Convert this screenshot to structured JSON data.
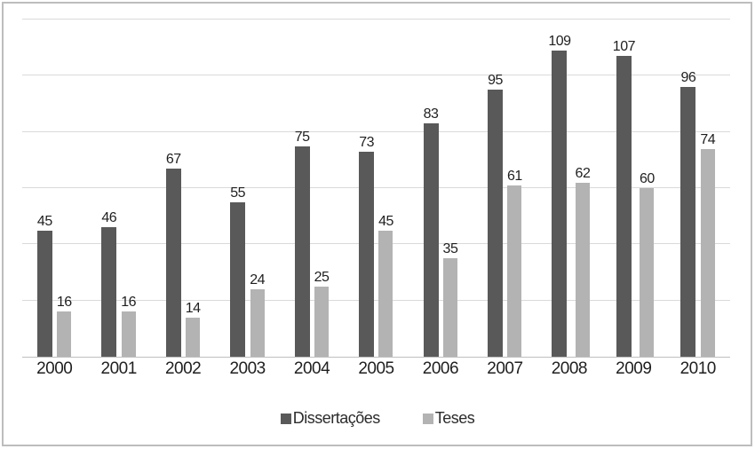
{
  "chart_data": {
    "type": "bar",
    "title": "",
    "xlabel": "",
    "ylabel": "",
    "categories": [
      "2000",
      "2001",
      "2002",
      "2003",
      "2004",
      "2005",
      "2006",
      "2007",
      "2008",
      "2009",
      "2010"
    ],
    "series": [
      {
        "name": "Dissertações",
        "color": "#595959",
        "values": [
          45,
          46,
          67,
          55,
          75,
          73,
          83,
          95,
          109,
          107,
          96
        ]
      },
      {
        "name": "Teses",
        "color": "#b3b3b3",
        "values": [
          16,
          16,
          14,
          24,
          25,
          45,
          35,
          61,
          62,
          60,
          74
        ]
      }
    ],
    "ylim": [
      0,
      120
    ],
    "gridline_step": 20,
    "grid": true,
    "y_axis_labels_visible": false,
    "data_labels_visible": true,
    "legend_position": "bottom"
  },
  "colors": {
    "frame_border": "#bdbdbd",
    "gridline": "#dadada",
    "axis_line": "#bfbfbf",
    "label_text": "#1f1f1f",
    "background": "#ffffff"
  }
}
